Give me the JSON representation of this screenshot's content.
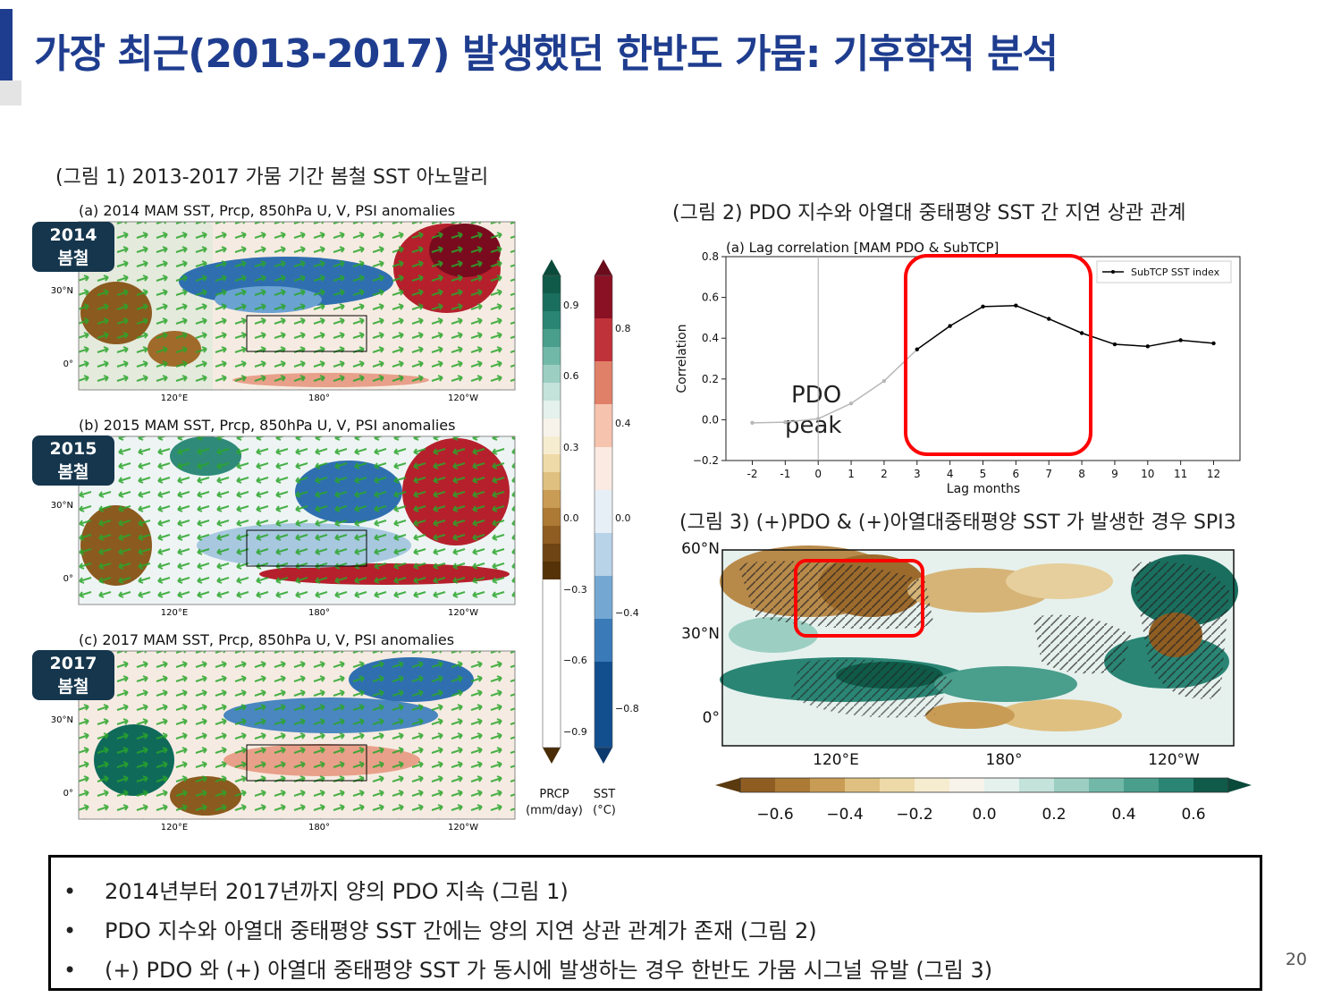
{
  "title": "가장 최근(2013-2017) 발생했던 한반도 가뭄: 기후학적 분석",
  "fig1": {
    "caption": "(그림 1) 2013-2017 가뭄 기간 봄철 SST 아노말리",
    "panels": [
      {
        "title": "(a) 2014 MAM SST, Prcp, 850hPa U, V, PSI anomalies",
        "badge_year": "2014",
        "badge_season": "봄철"
      },
      {
        "title": "(b) 2015 MAM SST, Prcp, 850hPa U, V, PSI anomalies",
        "badge_year": "2015",
        "badge_season": "봄철"
      },
      {
        "title": "(c) 2017 MAM SST, Prcp, 850hPa U, V, PSI anomalies",
        "badge_year": "2017",
        "badge_season": "봄철"
      }
    ],
    "lat_labels": [
      "30°N",
      "0°"
    ],
    "lon_labels": [
      "120°E",
      "180°",
      "120°W"
    ],
    "colorbars": {
      "prcp": {
        "ticks": [
          "0.9",
          "0.6",
          "0.3",
          "0.0",
          "−0.3",
          "−0.6",
          "−0.9"
        ],
        "label_line1": "PRCP",
        "label_line2": "(mm/day)"
      },
      "sst": {
        "ticks": [
          "0.8",
          "0.4",
          "0.0",
          "−0.4",
          "−0.8"
        ],
        "label_line1": "SST",
        "label_line2": "(°C)"
      }
    }
  },
  "fig2": {
    "caption": "(그림 2) PDO 지수와 아열대 중태평양 SST 간 지연 상관 관계",
    "annotation_line1": "PDO",
    "annotation_line2": "peak"
  },
  "fig3": {
    "caption": "(그림 3) (+)PDO & (+)아열대중태평양 SST 가 발생한 경우 SPI3",
    "lat_labels": [
      "60°N",
      "30°N",
      "0°"
    ],
    "lon_labels": [
      "120°E",
      "180°",
      "120°W"
    ],
    "colorbar_ticks": [
      "−0.6",
      "−0.4",
      "−0.2",
      "0.0",
      "0.2",
      "0.4",
      "0.6"
    ]
  },
  "chart_data": {
    "type": "line",
    "title": "(a) Lag correlation [MAM PDO & SubTCP]",
    "xlabel": "Lag months",
    "ylabel": "Correlation",
    "x": [
      -2,
      -1,
      0,
      1,
      2,
      3,
      4,
      5,
      6,
      7,
      8,
      9,
      10,
      11,
      12
    ],
    "xticks": [
      "-2",
      "-1",
      "0",
      "1",
      "2",
      "3",
      "4",
      "5",
      "6",
      "7",
      "8",
      "9",
      "10",
      "11",
      "12"
    ],
    "yticks": [
      "0.8",
      "0.6",
      "0.4",
      "0.2",
      "0.0",
      "−0.2"
    ],
    "xlim": [
      -2.8,
      12.8
    ],
    "ylim": [
      -0.2,
      0.8
    ],
    "grid": false,
    "legend_position": "top-right",
    "series": [
      {
        "name": "SubTCP SST index",
        "values": [
          -0.015,
          -0.012,
          0.005,
          0.08,
          0.19,
          0.345,
          0.46,
          0.555,
          0.56,
          0.495,
          0.425,
          0.37,
          0.36,
          0.39,
          0.375
        ],
        "color": "#000000",
        "faded_color": "#b8b8b8",
        "faded_through_x": 3
      }
    ]
  },
  "summary": {
    "bullets": [
      "2014년부터 2017년까지 양의 PDO 지속 (그림 1)",
      "PDO 지수와 아열대 중태평양 SST 간에는 양의 지연 상관 관계가 존재 (그림 2)",
      "(+) PDO 와 (+) 아열대 중태평양 SST 가 동시에 발생하는 경우 한반도 가뭄 시그널 유발 (그림 3)"
    ],
    "bullet_symbol": "•"
  },
  "page_number": "20",
  "colors": {
    "title": "#1f3d8f",
    "badge": "#15364d",
    "highlight": "#ff0000",
    "vector": "#2aa52a"
  }
}
